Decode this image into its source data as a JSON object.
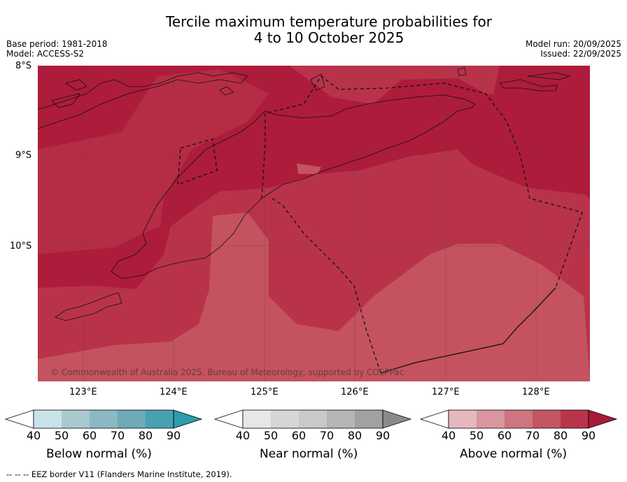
{
  "title_line1": "Tercile maximum temperature probabilities for",
  "title_line2": "4 to 10 October 2025",
  "meta_left": [
    "Base period: 1981-2018",
    "Model: ACCESS-S2"
  ],
  "meta_right": [
    "Model run: 20/09/2025",
    "Issued: 22/09/2025"
  ],
  "latitudes": [
    "8°S",
    "9°S",
    "10°S"
  ],
  "longitudes": [
    "123°E",
    "124°E",
    "125°E",
    "126°E",
    "127°E",
    "128°E"
  ],
  "copyright": "© Commonwealth of Australia 2025. Bureau of Meteorology, supported by COSPPac",
  "colorbars": [
    {
      "label": "Below normal (%)",
      "ticks": [
        "40",
        "50",
        "60",
        "70",
        "80",
        "90"
      ],
      "colors": [
        "#c8e3ea",
        "#a9c9cf",
        "#8bb9c3",
        "#6eaab8",
        "#48a1b1",
        "#2e9bae"
      ]
    },
    {
      "label": "Near normal (%)",
      "ticks": [
        "40",
        "50",
        "60",
        "70",
        "80",
        "90"
      ],
      "colors": [
        "#e7e7e7",
        "#d6d6d6",
        "#c9c9c9",
        "#b5b5b5",
        "#a1a1a1",
        "#8a8a8a"
      ]
    },
    {
      "label": "Above normal (%)",
      "ticks": [
        "40",
        "50",
        "60",
        "70",
        "80",
        "90"
      ],
      "colors": [
        "#e5b8bf",
        "#d9969f",
        "#cd7580",
        "#c25763",
        "#b8344b",
        "#a81a3a"
      ]
    }
  ],
  "footer": "-- -- -- EEZ border V11 (Flanders Marine Institute, 2019)."
}
